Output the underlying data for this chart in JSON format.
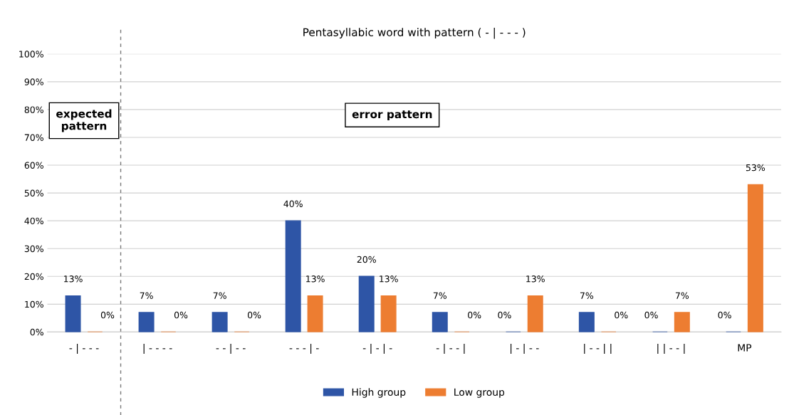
{
  "chart_data": {
    "type": "bar",
    "title": "Pentasyllabic word with pattern ( - | - - - )",
    "categories": [
      "- | - - -",
      "| - - - -",
      "- - | - -",
      "- - - | -",
      "- | - | -",
      "- | - - |",
      "| - | - -",
      "| - - | |",
      "| | - - |",
      "MP"
    ],
    "series": [
      {
        "name": "High group",
        "color": "#2e55a6",
        "values": [
          13,
          7,
          7,
          40,
          20,
          7,
          0,
          7,
          0,
          0
        ],
        "value_labels": [
          "13%",
          "7%",
          "7%",
          "40%",
          "20%",
          "7%",
          "0%",
          "7%",
          "0%",
          "0%"
        ]
      },
      {
        "name": "Low group",
        "color": "#ed7d31",
        "values": [
          0,
          0,
          0,
          13,
          13,
          0,
          13,
          0,
          7,
          53
        ],
        "value_labels": [
          "0%",
          "0%",
          "0%",
          "13%",
          "13%",
          "0%",
          "13%",
          "0%",
          "7%",
          "53%"
        ]
      }
    ],
    "ylim": [
      0,
      100
    ],
    "yticks": [
      {
        "value": 0,
        "label": "0%"
      },
      {
        "value": 10,
        "label": "10%"
      },
      {
        "value": 20,
        "label": "20%"
      },
      {
        "value": 30,
        "label": "30%"
      },
      {
        "value": 40,
        "label": "40%"
      },
      {
        "value": 50,
        "label": "50%"
      },
      {
        "value": 60,
        "label": "60%"
      },
      {
        "value": 70,
        "label": "70%"
      },
      {
        "value": 80,
        "label": "80%"
      },
      {
        "value": 90,
        "label": "90%"
      },
      {
        "value": 100,
        "label": "100%"
      }
    ],
    "annotations": [
      "expected\npattern",
      "error pattern"
    ],
    "grid": "y",
    "legend": "bottom"
  }
}
